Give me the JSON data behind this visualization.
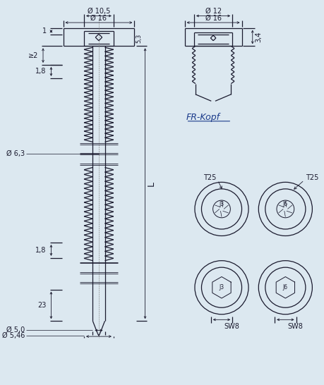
{
  "bg_color": "#dce8f0",
  "line_color": "#1a1a2e",
  "blue_color": "#1a3a8a",
  "figsize": [
    4.59,
    5.46
  ],
  "dpi": 100,
  "labels": {
    "phi16_top": "Ø 16",
    "phi10_5": "Ø 10,5",
    "phi16_right": "Ø 16",
    "phi12": "Ø 12",
    "phi6_3": "Ø 6,3",
    "phi5_0": "Ø 5,0",
    "phi5_46": "Ø 5,46",
    "dim_1": "1",
    "dim_ge2": "≥2",
    "dim_1_8a": "1,8",
    "dim_1_8b": "1,8",
    "dim_23": "23",
    "dim_L": "L",
    "dim_3_4": "3,4",
    "dim_5_3": "5,3",
    "fr_kopf": "FR-Kopf",
    "t25_left": "T25",
    "t25_right": "T25",
    "sw8_left": "SW8",
    "sw8_right": "SW8",
    "j3_tl": "J3",
    "j6_tr": "J6",
    "j3_bl": "J3",
    "j6_br": "J6"
  }
}
